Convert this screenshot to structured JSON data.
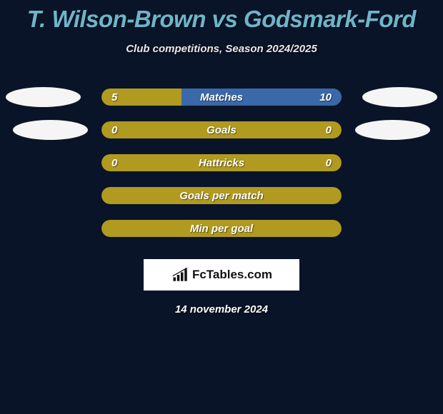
{
  "title": "T. Wilson-Brown vs Godsmark-Ford",
  "subtitle": "Club competitions, Season 2024/2025",
  "colors": {
    "background": "#0a1428",
    "title": "#6fb5c9",
    "left_fill": "#b09a1f",
    "right_fill": "#3a68a8",
    "empty_fill": "#b09a1f",
    "oval": "#f5f5f5",
    "text": "#ffffff"
  },
  "bars": [
    {
      "label": "Matches",
      "left_value": "5",
      "right_value": "10",
      "left_pct": 33.3,
      "right_pct": 66.7,
      "left_color": "#b09a1f",
      "right_color": "#3a68a8",
      "show_ovals": true,
      "oval_indent": false
    },
    {
      "label": "Goals",
      "left_value": "0",
      "right_value": "0",
      "left_pct": 100,
      "right_pct": 0,
      "left_color": "#b09a1f",
      "right_color": "#b09a1f",
      "show_ovals": true,
      "oval_indent": true
    },
    {
      "label": "Hattricks",
      "left_value": "0",
      "right_value": "0",
      "left_pct": 100,
      "right_pct": 0,
      "left_color": "#b09a1f",
      "right_color": "#b09a1f",
      "show_ovals": false,
      "oval_indent": false
    },
    {
      "label": "Goals per match",
      "left_value": "",
      "right_value": "",
      "left_pct": 100,
      "right_pct": 0,
      "left_color": "#b09a1f",
      "right_color": "#b09a1f",
      "show_ovals": false,
      "oval_indent": false
    },
    {
      "label": "Min per goal",
      "left_value": "",
      "right_value": "",
      "left_pct": 100,
      "right_pct": 0,
      "left_color": "#b09a1f",
      "right_color": "#b09a1f",
      "show_ovals": false,
      "oval_indent": false
    }
  ],
  "brand": "FcTables.com",
  "date": "14 november 2024"
}
